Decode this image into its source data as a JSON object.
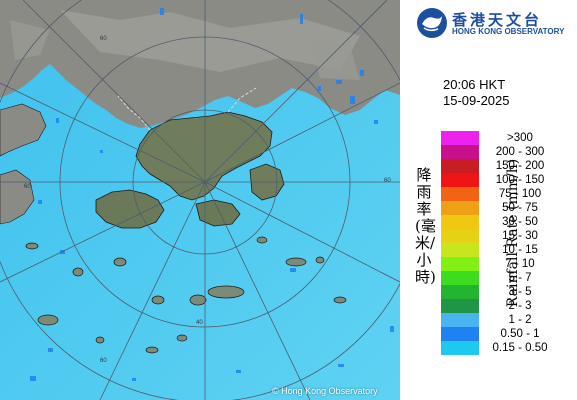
{
  "logo": {
    "name_zh": "香港天文台",
    "name_en": "HONG KONG OBSERVATORY"
  },
  "map": {
    "copyright": "© Hong Kong Observatory",
    "range_ring_labels": [
      "60",
      "60",
      "60",
      "60",
      "40"
    ],
    "colors": {
      "sea": "#55c9f0",
      "land": "#8a8a8a",
      "hk_land": "#6a7a5a",
      "grid": "#5f6f7f",
      "border": "#d8d8d8"
    }
  },
  "timestamp": {
    "time": "20:06 HKT",
    "date": "15-09-2025"
  },
  "legend": {
    "title_zh": "降雨率(毫米/小時)",
    "title_en": "Rainfall Rate (mm/h)",
    "items": [
      {
        "label": ">300",
        "color": "#ee22ee"
      },
      {
        "label": "200 - 300",
        "color": "#c80f8c"
      },
      {
        "label": "150 - 200",
        "color": "#c81e23"
      },
      {
        "label": "100 - 150",
        "color": "#f01414"
      },
      {
        "label": "75 - 100",
        "color": "#f06414"
      },
      {
        "label": "50 - 75",
        "color": "#f0a014"
      },
      {
        "label": "30 - 50",
        "color": "#f0c814"
      },
      {
        "label": "15 - 30",
        "color": "#e6d214"
      },
      {
        "label": "10 - 15",
        "color": "#c8e61e"
      },
      {
        "label": "7 - 10",
        "color": "#82f014"
      },
      {
        "label": "5 - 7",
        "color": "#3cdc1e"
      },
      {
        "label": "3 - 5",
        "color": "#23b432"
      },
      {
        "label": "2 - 3",
        "color": "#1e9646"
      },
      {
        "label": "1 - 2",
        "color": "#4ab4f0"
      },
      {
        "label": "0.50 - 1",
        "color": "#1e82f0"
      },
      {
        "label": "0.15 - 0.50",
        "color": "#1ec8f0"
      }
    ]
  }
}
